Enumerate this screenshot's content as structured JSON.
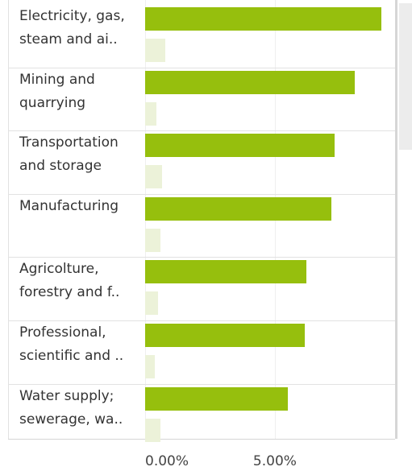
{
  "chart_data": {
    "type": "bar",
    "orientation": "horizontal",
    "categories": [
      "Electricity, gas, steam and ai..",
      "Mining and quarrying",
      "Transportation and storage",
      "Manufacturing",
      "Agricolture, forestry and f..",
      "Professional, scientific and ..",
      "Water supply; sewerage, wa.."
    ],
    "series": [
      {
        "color": "#96bf0d",
        "values": [
          9.1,
          8.07,
          7.3,
          7.17,
          6.21,
          6.15,
          5.5
        ]
      },
      {
        "color": "#ecf2d9",
        "values": [
          0.78,
          0.43,
          0.65,
          0.59,
          0.5,
          0.37,
          0.59
        ]
      }
    ],
    "xlim": [
      0,
      9.6
    ],
    "xticks": [
      {
        "value": 0,
        "label": "0.00%"
      },
      {
        "value": 5,
        "label": "5.00%"
      }
    ],
    "grid": true
  }
}
